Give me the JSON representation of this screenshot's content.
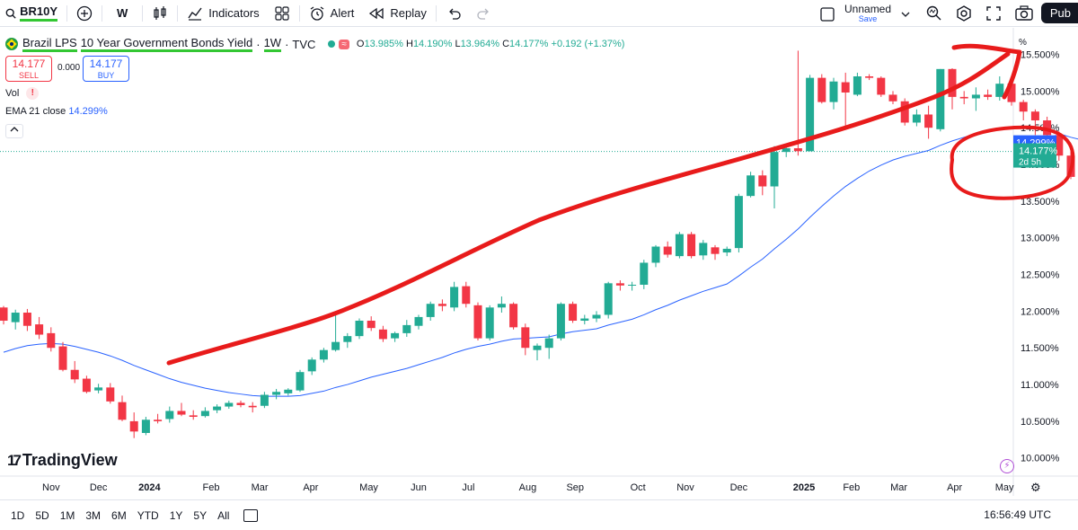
{
  "toolbar": {
    "symbol": "BR10Y",
    "interval": "W",
    "indicators_label": "Indicators",
    "alert_label": "Alert",
    "replay_label": "Replay",
    "layout_name": "Unnamed",
    "layout_sub": "Save",
    "publish_label": "Pub"
  },
  "legend": {
    "title_a": "Brazil LPS",
    "title_b": "10 Year Government Bonds Yield",
    "title_sep1": "·",
    "interval": "1W",
    "title_sep2": "·",
    "source": "TVC",
    "pill": "≈",
    "o_lbl": "O",
    "o_val": "13.985%",
    "h_lbl": "H",
    "h_val": "14.190%",
    "l_lbl": "L",
    "l_val": "13.964%",
    "c_lbl": "C",
    "c_val": "14.177%",
    "change": "+0.192 (+1.37%)"
  },
  "trade": {
    "sell_price": "14.177",
    "sell_label": "SELL",
    "spread": "0.000",
    "buy_price": "14.177",
    "buy_label": "BUY"
  },
  "indicators": {
    "vol_label": "Vol",
    "vol_warn": "!",
    "ema_label": "EMA 21 close",
    "ema_value": "14.299%"
  },
  "branding": {
    "logo_text": "TradingView",
    "logo_mark": "17"
  },
  "axis_unit": "%",
  "bottom": {
    "ranges": [
      "1D",
      "5D",
      "1M",
      "3M",
      "6M",
      "YTD",
      "1Y",
      "5Y",
      "All"
    ],
    "clock": "16:56:49 UTC"
  },
  "colors": {
    "up": "#22ab94",
    "down": "#f23645",
    "ema": "#2962ff",
    "annotation": "#e81b1b",
    "highlight": "#33c733"
  },
  "chart_data": {
    "type": "candlestick",
    "y_label_unit": "%",
    "ylim": [
      9.85,
      15.8
    ],
    "y_ticks": [
      "15.500%",
      "15.000%",
      "14.500%",
      "14.000%",
      "13.500%",
      "13.000%",
      "12.500%",
      "12.000%",
      "11.500%",
      "11.000%",
      "10.500%",
      "10.000%"
    ],
    "x_ticks": [
      {
        "label": "Oct",
        "index": -1
      },
      {
        "label": "Nov",
        "index": 4
      },
      {
        "label": "Dec",
        "index": 8
      },
      {
        "label": "2024",
        "index": 12.3,
        "bold": true
      },
      {
        "label": "Feb",
        "index": 17.5
      },
      {
        "label": "Mar",
        "index": 21.6
      },
      {
        "label": "Apr",
        "index": 25.9
      },
      {
        "label": "May",
        "index": 30.8
      },
      {
        "label": "Jun",
        "index": 35
      },
      {
        "label": "Jul",
        "index": 39.2
      },
      {
        "label": "Aug",
        "index": 44.2
      },
      {
        "label": "Sep",
        "index": 48.2
      },
      {
        "label": "Oct",
        "index": 53.5
      },
      {
        "label": "Nov",
        "index": 57.5
      },
      {
        "label": "Dec",
        "index": 62
      },
      {
        "label": "2025",
        "index": 67.5,
        "bold": true
      },
      {
        "label": "Feb",
        "index": 71.5
      },
      {
        "label": "Mar",
        "index": 75.5
      },
      {
        "label": "Apr",
        "index": 80.2
      },
      {
        "label": "May",
        "index": 84.4
      }
    ],
    "candles": [
      [
        12.05,
        12.07,
        11.82,
        11.87
      ],
      [
        11.85,
        12.02,
        11.75,
        11.98
      ],
      [
        11.98,
        12.03,
        11.73,
        11.8
      ],
      [
        11.82,
        11.92,
        11.62,
        11.68
      ],
      [
        11.7,
        11.78,
        11.45,
        11.5
      ],
      [
        11.52,
        11.58,
        11.18,
        11.2
      ],
      [
        11.2,
        11.32,
        11.02,
        11.07
      ],
      [
        11.08,
        11.12,
        10.88,
        10.9
      ],
      [
        10.92,
        11.01,
        10.88,
        10.96
      ],
      [
        10.96,
        11.02,
        10.74,
        10.77
      ],
      [
        10.76,
        10.85,
        10.5,
        10.52
      ],
      [
        10.5,
        10.62,
        10.27,
        10.36
      ],
      [
        10.34,
        10.56,
        10.31,
        10.52
      ],
      [
        10.52,
        10.6,
        10.47,
        10.5
      ],
      [
        10.53,
        10.7,
        10.48,
        10.64
      ],
      [
        10.64,
        10.75,
        10.57,
        10.59
      ],
      [
        10.58,
        10.65,
        10.52,
        10.56
      ],
      [
        10.57,
        10.69,
        10.55,
        10.64
      ],
      [
        10.65,
        10.73,
        10.61,
        10.7
      ],
      [
        10.7,
        10.78,
        10.67,
        10.75
      ],
      [
        10.75,
        10.78,
        10.69,
        10.72
      ],
      [
        10.71,
        10.76,
        10.62,
        10.69
      ],
      [
        10.71,
        10.9,
        10.68,
        10.86
      ],
      [
        10.86,
        10.94,
        10.8,
        10.9
      ],
      [
        10.88,
        10.95,
        10.85,
        10.93
      ],
      [
        10.92,
        11.2,
        10.9,
        11.17
      ],
      [
        11.18,
        11.37,
        11.13,
        11.34
      ],
      [
        11.34,
        11.5,
        11.3,
        11.47
      ],
      [
        11.47,
        12.0,
        11.45,
        11.58
      ],
      [
        11.58,
        11.7,
        11.5,
        11.66
      ],
      [
        11.66,
        11.9,
        11.62,
        11.87
      ],
      [
        11.87,
        11.93,
        11.73,
        11.77
      ],
      [
        11.75,
        11.8,
        11.58,
        11.62
      ],
      [
        11.63,
        11.72,
        11.58,
        11.7
      ],
      [
        11.7,
        11.88,
        11.65,
        11.81
      ],
      [
        11.8,
        11.95,
        11.75,
        11.92
      ],
      [
        11.92,
        12.13,
        11.87,
        12.1
      ],
      [
        12.1,
        12.16,
        12.0,
        12.07
      ],
      [
        12.05,
        12.4,
        12.0,
        12.33
      ],
      [
        12.34,
        12.4,
        12.05,
        12.1
      ],
      [
        12.08,
        12.12,
        11.6,
        11.63
      ],
      [
        11.63,
        12.08,
        11.6,
        12.05
      ],
      [
        12.05,
        12.2,
        11.98,
        12.1
      ],
      [
        12.1,
        12.12,
        11.75,
        11.78
      ],
      [
        11.78,
        11.83,
        11.4,
        11.5
      ],
      [
        11.47,
        11.56,
        11.33,
        11.53
      ],
      [
        11.5,
        11.68,
        11.35,
        11.63
      ],
      [
        11.63,
        12.12,
        11.6,
        12.1
      ],
      [
        12.1,
        12.13,
        11.84,
        11.87
      ],
      [
        11.87,
        11.95,
        11.82,
        11.9
      ],
      [
        11.9,
        12.0,
        11.85,
        11.95
      ],
      [
        11.95,
        12.4,
        11.9,
        12.38
      ],
      [
        12.38,
        12.42,
        12.28,
        12.35
      ],
      [
        12.35,
        12.4,
        12.28,
        12.36
      ],
      [
        12.36,
        12.7,
        12.3,
        12.66
      ],
      [
        12.66,
        12.9,
        12.6,
        12.88
      ],
      [
        12.88,
        12.95,
        12.73,
        12.77
      ],
      [
        12.75,
        13.08,
        12.72,
        13.05
      ],
      [
        13.05,
        13.08,
        12.72,
        12.75
      ],
      [
        12.76,
        12.97,
        12.7,
        12.93
      ],
      [
        12.87,
        12.9,
        12.7,
        12.78
      ],
      [
        12.8,
        12.88,
        12.75,
        12.85
      ],
      [
        12.86,
        13.6,
        12.8,
        13.57
      ],
      [
        13.57,
        13.9,
        13.55,
        13.85
      ],
      [
        13.85,
        13.92,
        13.58,
        13.7
      ],
      [
        13.7,
        14.25,
        13.4,
        14.17
      ],
      [
        14.17,
        14.28,
        14.1,
        14.22
      ],
      [
        14.22,
        15.55,
        14.12,
        14.18
      ],
      [
        14.18,
        15.22,
        14.18,
        15.18
      ],
      [
        15.18,
        15.23,
        14.83,
        14.85
      ],
      [
        14.85,
        15.18,
        14.75,
        15.13
      ],
      [
        15.12,
        15.25,
        14.47,
        14.98
      ],
      [
        14.95,
        15.25,
        14.93,
        15.2
      ],
      [
        15.2,
        15.23,
        15.15,
        15.18
      ],
      [
        15.18,
        15.2,
        14.92,
        14.95
      ],
      [
        14.95,
        15.0,
        14.82,
        14.86
      ],
      [
        14.86,
        14.9,
        14.53,
        14.57
      ],
      [
        14.57,
        14.75,
        14.52,
        14.68
      ],
      [
        14.68,
        14.8,
        14.35,
        14.5
      ],
      [
        14.48,
        15.3,
        14.45,
        15.3
      ],
      [
        15.3,
        15.31,
        14.75,
        14.92
      ],
      [
        14.92,
        15.0,
        14.82,
        14.9
      ],
      [
        14.9,
        15.05,
        14.73,
        14.95
      ],
      [
        14.95,
        15.02,
        14.88,
        14.92
      ],
      [
        14.92,
        15.2,
        14.87,
        15.1
      ],
      [
        15.1,
        15.12,
        14.8,
        14.85
      ],
      [
        14.85,
        14.88,
        14.6,
        14.72
      ],
      [
        14.72,
        14.75,
        14.4,
        14.6
      ],
      [
        14.6,
        14.65,
        14.25,
        14.4
      ],
      [
        14.4,
        14.45,
        14.05,
        14.12
      ],
      [
        14.12,
        14.18,
        13.8,
        13.83
      ],
      [
        13.83,
        14.15,
        13.8,
        13.98
      ],
      [
        13.985,
        14.19,
        13.964,
        14.177
      ]
    ],
    "ema21": [
      11.44,
      11.49,
      11.53,
      11.55,
      11.56,
      11.55,
      11.52,
      11.48,
      11.44,
      11.39,
      11.33,
      11.26,
      11.2,
      11.14,
      11.08,
      11.03,
      10.99,
      10.95,
      10.92,
      10.89,
      10.87,
      10.85,
      10.84,
      10.84,
      10.84,
      10.85,
      10.88,
      10.91,
      10.96,
      11.0,
      11.05,
      11.1,
      11.14,
      11.18,
      11.22,
      11.27,
      11.32,
      11.37,
      11.43,
      11.48,
      11.52,
      11.55,
      11.59,
      11.62,
      11.63,
      11.64,
      11.65,
      11.69,
      11.72,
      11.74,
      11.76,
      11.81,
      11.85,
      11.89,
      11.95,
      12.02,
      12.08,
      12.15,
      12.21,
      12.27,
      12.32,
      12.37,
      12.48,
      12.6,
      12.71,
      12.85,
      12.98,
      13.12,
      13.28,
      13.43,
      13.57,
      13.7,
      13.81,
      13.91,
      13.99,
      14.06,
      14.11,
      14.15,
      14.19,
      14.26,
      14.32,
      14.37,
      14.42,
      14.45,
      14.5,
      14.51,
      14.52,
      14.51,
      14.47,
      14.42,
      14.37,
      14.33,
      14.299
    ],
    "last_price": "14.177%",
    "last_countdown": "2d 5h",
    "ema_tag": "14.299%"
  }
}
